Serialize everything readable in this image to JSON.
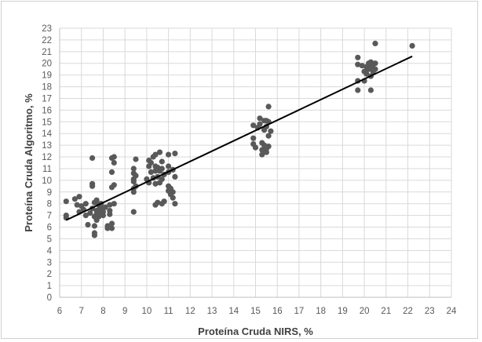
{
  "chart_data": {
    "type": "scatter",
    "title": "",
    "xlabel": "Proteína Cruda NIRS, %",
    "ylabel": "Proteína Cruda Algoritmo, %",
    "xlim": [
      6,
      24
    ],
    "ylim": [
      0,
      23
    ],
    "xticks": [
      "6",
      "7",
      "8",
      "9",
      "10",
      "11",
      "12",
      "13",
      "14",
      "15",
      "16",
      "17",
      "18",
      "19",
      "20",
      "21",
      "22",
      "23",
      "24"
    ],
    "yticks": [
      "0",
      "1",
      "2",
      "3",
      "4",
      "5",
      "6",
      "7",
      "8",
      "9",
      "10",
      "11",
      "12",
      "13",
      "14",
      "15",
      "16",
      "17",
      "18",
      "19",
      "20",
      "21",
      "22",
      "23"
    ],
    "grid": true,
    "legend": "none",
    "marker_color": "#595959",
    "trendline": {
      "color": "#000000",
      "x": [
        6.3,
        22.2
      ],
      "y": [
        6.6,
        20.6
      ]
    },
    "series": [
      {
        "points": [
          [
            6.3,
            8.2
          ],
          [
            6.3,
            7.0
          ],
          [
            6.3,
            6.8
          ],
          [
            6.7,
            8.4
          ],
          [
            6.8,
            7.9
          ],
          [
            6.9,
            8.6
          ],
          [
            6.9,
            7.3
          ],
          [
            7.0,
            7.8
          ],
          [
            7.1,
            7.5
          ],
          [
            7.2,
            8.0
          ],
          [
            7.2,
            7.0
          ],
          [
            7.3,
            6.2
          ],
          [
            7.4,
            7.2
          ],
          [
            7.5,
            9.7
          ],
          [
            7.5,
            9.5
          ],
          [
            7.5,
            11.9
          ],
          [
            7.5,
            7.6
          ],
          [
            7.6,
            8.1
          ],
          [
            7.6,
            6.9
          ],
          [
            7.6,
            6.1
          ],
          [
            7.6,
            5.5
          ],
          [
            7.6,
            5.3
          ],
          [
            7.7,
            7.4
          ],
          [
            7.7,
            8.3
          ],
          [
            7.7,
            7.1
          ],
          [
            7.7,
            6.8
          ],
          [
            7.7,
            6.6
          ],
          [
            7.8,
            7.9
          ],
          [
            7.8,
            7.5
          ],
          [
            7.8,
            7.2
          ],
          [
            7.8,
            6.9
          ],
          [
            7.9,
            7.6
          ],
          [
            7.9,
            8.0
          ],
          [
            8.0,
            7.3
          ],
          [
            8.0,
            7.0
          ],
          [
            8.1,
            7.7
          ],
          [
            8.2,
            6.1
          ],
          [
            8.2,
            5.9
          ],
          [
            8.3,
            7.9
          ],
          [
            8.3,
            7.4
          ],
          [
            8.3,
            7.1
          ],
          [
            8.4,
            6.3
          ],
          [
            8.4,
            5.9
          ],
          [
            8.4,
            10.7
          ],
          [
            8.4,
            11.9
          ],
          [
            8.4,
            9.4
          ],
          [
            8.5,
            11.5
          ],
          [
            8.5,
            12.0
          ],
          [
            8.5,
            9.6
          ],
          [
            8.5,
            8.0
          ],
          [
            9.4,
            7.3
          ],
          [
            9.4,
            9.0
          ],
          [
            9.4,
            9.3
          ],
          [
            9.4,
            9.9
          ],
          [
            9.4,
            10.1
          ],
          [
            9.4,
            10.6
          ],
          [
            9.4,
            11.0
          ],
          [
            9.5,
            11.8
          ],
          [
            9.5,
            9.5
          ],
          [
            9.5,
            10.4
          ],
          [
            10.0,
            10.1
          ],
          [
            10.1,
            9.8
          ],
          [
            10.1,
            11.2
          ],
          [
            10.1,
            11.7
          ],
          [
            10.2,
            10.7
          ],
          [
            10.2,
            11.5
          ],
          [
            10.3,
            12.0
          ],
          [
            10.3,
            10.2
          ],
          [
            10.4,
            12.2
          ],
          [
            10.4,
            11.2
          ],
          [
            10.4,
            10.8
          ],
          [
            10.4,
            9.7
          ],
          [
            10.4,
            7.9
          ],
          [
            10.5,
            11.1
          ],
          [
            10.5,
            8.1
          ],
          [
            10.5,
            10.3
          ],
          [
            10.6,
            12.4
          ],
          [
            10.6,
            10.8
          ],
          [
            10.6,
            9.8
          ],
          [
            10.7,
            11.6
          ],
          [
            10.7,
            11.0
          ],
          [
            10.7,
            10.1
          ],
          [
            10.7,
            8.0
          ],
          [
            10.8,
            10.5
          ],
          [
            10.8,
            8.2
          ],
          [
            11.0,
            12.2
          ],
          [
            11.0,
            11.2
          ],
          [
            11.0,
            10.7
          ],
          [
            11.0,
            9.5
          ],
          [
            11.0,
            9.1
          ],
          [
            11.1,
            9.3
          ],
          [
            11.1,
            8.8
          ],
          [
            11.2,
            10.9
          ],
          [
            11.2,
            9.0
          ],
          [
            11.2,
            8.5
          ],
          [
            11.3,
            12.3
          ],
          [
            11.3,
            10.3
          ],
          [
            11.3,
            8.0
          ],
          [
            14.9,
            14.7
          ],
          [
            14.9,
            13.6
          ],
          [
            14.9,
            13.1
          ],
          [
            15.0,
            12.8
          ],
          [
            15.1,
            14.5
          ],
          [
            15.2,
            15.3
          ],
          [
            15.2,
            14.8
          ],
          [
            15.3,
            13.2
          ],
          [
            15.3,
            12.6
          ],
          [
            15.3,
            12.2
          ],
          [
            15.4,
            15.1
          ],
          [
            15.4,
            14.3
          ],
          [
            15.4,
            13.0
          ],
          [
            15.5,
            15.1
          ],
          [
            15.5,
            14.6
          ],
          [
            15.5,
            12.7
          ],
          [
            15.5,
            12.4
          ],
          [
            15.6,
            16.3
          ],
          [
            15.6,
            15.0
          ],
          [
            15.6,
            13.8
          ],
          [
            15.6,
            12.9
          ],
          [
            15.7,
            14.2
          ],
          [
            19.7,
            20.5
          ],
          [
            19.7,
            19.9
          ],
          [
            19.7,
            18.5
          ],
          [
            19.7,
            17.7
          ],
          [
            19.9,
            19.8
          ],
          [
            20.0,
            19.3
          ],
          [
            20.0,
            18.5
          ],
          [
            20.1,
            19.7
          ],
          [
            20.1,
            19.1
          ],
          [
            20.2,
            20.0
          ],
          [
            20.2,
            19.5
          ],
          [
            20.3,
            18.9
          ],
          [
            20.3,
            17.7
          ],
          [
            20.3,
            19.9
          ],
          [
            20.3,
            20.1
          ],
          [
            20.3,
            19.6
          ],
          [
            20.4,
            19.9
          ],
          [
            20.4,
            19.3
          ],
          [
            20.5,
            21.7
          ],
          [
            20.5,
            20.0
          ],
          [
            20.5,
            19.5
          ],
          [
            22.2,
            21.5
          ]
        ]
      }
    ]
  }
}
